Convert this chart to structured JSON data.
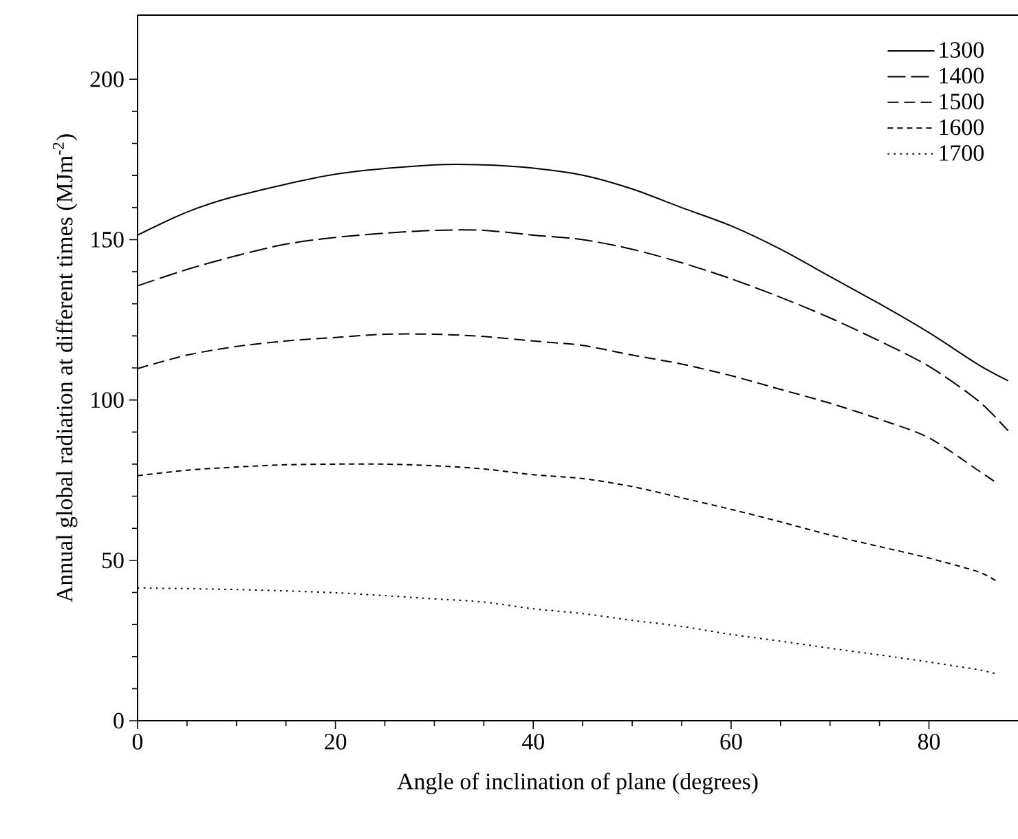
{
  "chart_data": {
    "type": "line",
    "xlabel": "Angle of inclination of plane (degrees)",
    "ylabel": "Annual global radiation at different times (MJm$^{-2}$)",
    "xlim": [
      0,
      89
    ],
    "ylim": [
      0,
      220
    ],
    "xticks": [
      0,
      20,
      40,
      60,
      80
    ],
    "yticks": [
      0,
      50,
      100,
      150,
      200
    ],
    "legend": "top right",
    "grid": false,
    "marker": "none",
    "series": [
      {
        "name": "1300",
        "color": "#000000",
        "line_style": "solid",
        "x": [
          0,
          5,
          10,
          20,
          30,
          35,
          40,
          45,
          50,
          55,
          60,
          65,
          70,
          75,
          80,
          85,
          88
        ],
        "values": [
          151.4,
          158.6,
          163.6,
          170.4,
          173.3,
          173.3,
          172.3,
          170.1,
          165.8,
          160,
          154.3,
          147,
          138.5,
          130,
          121,
          111,
          106
        ]
      },
      {
        "name": "1400",
        "color": "#000000",
        "line_style": "dashed",
        "x": [
          0,
          5,
          10,
          15,
          20,
          25,
          30,
          35,
          40,
          45,
          50,
          55,
          60,
          65,
          70,
          75,
          80,
          85,
          88
        ],
        "values": [
          135.6,
          140.7,
          145,
          148.6,
          150.7,
          152,
          152.9,
          152.9,
          151.4,
          150,
          147,
          142.8,
          137.8,
          132,
          125.6,
          118.4,
          110.5,
          99.7,
          90.4
        ]
      },
      {
        "name": "1500",
        "color": "#000000",
        "line_style": "dashed",
        "x": [
          0,
          5,
          10,
          15,
          20,
          25,
          30,
          35,
          40,
          45,
          50,
          55,
          60,
          65,
          70,
          75,
          80,
          85,
          87
        ],
        "values": [
          109.8,
          114,
          116.7,
          118.4,
          119.5,
          120.5,
          120.5,
          119.8,
          118.4,
          117,
          114,
          111.2,
          107.6,
          103.3,
          99,
          94,
          88.2,
          78,
          73.8
        ]
      },
      {
        "name": "1600",
        "color": "#000000",
        "line_style": "dashed",
        "x": [
          0,
          5,
          10,
          15,
          20,
          25,
          30,
          35,
          40,
          45,
          50,
          55,
          60,
          65,
          70,
          75,
          80,
          85,
          87
        ],
        "values": [
          76.4,
          78.1,
          79.1,
          79.8,
          80,
          80,
          79.5,
          78.5,
          76.7,
          75.5,
          73,
          69.5,
          65.9,
          62,
          57.9,
          54.3,
          50.7,
          46.4,
          43.2
        ]
      },
      {
        "name": "1700",
        "color": "#000000",
        "line_style": "dotted",
        "x": [
          0,
          10,
          20,
          30,
          35,
          40,
          45,
          50,
          55,
          60,
          65,
          70,
          75,
          80,
          85,
          87
        ],
        "values": [
          41.4,
          40.9,
          39.9,
          38,
          37,
          34.9,
          33.4,
          31.3,
          29.4,
          26.9,
          24.8,
          22.6,
          20.5,
          18.3,
          15.9,
          14.4
        ]
      }
    ]
  }
}
